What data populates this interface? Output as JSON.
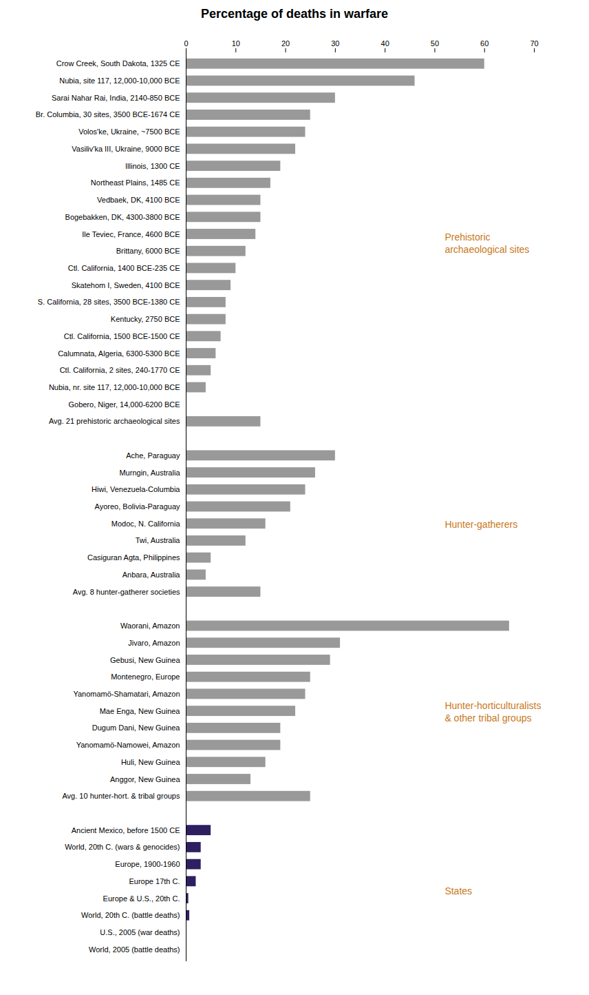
{
  "chart_data": {
    "type": "bar",
    "orientation": "horizontal",
    "title": "Percentage of deaths in warfare",
    "categories": [
      "Crow Creek, South Dakota, 1325 CE",
      "Nubia, site 117, 12,000-10,000 BCE",
      "Sarai Nahar Rai, India, 2140-850 BCE",
      "Br. Columbia, 30 sites, 3500 BCE-1674 CE",
      "Volos'ke, Ukraine, ~7500 BCE",
      "Vasiliv'ka III, Ukraine, 9000 BCE",
      "Illinois, 1300 CE",
      "Northeast Plains, 1485 CE",
      "Vedbaek, DK, 4100 BCE",
      "Bogebakken, DK, 4300-3800 BCE",
      "Ile Teviec, France, 4600 BCE",
      "Brittany, 6000 BCE",
      "Ctl. California, 1400 BCE-235 CE",
      "Skatehom I, Sweden, 4100 BCE",
      "S. California, 28 sites, 3500 BCE-1380 CE",
      "Kentucky, 2750 BCE",
      "Ctl. California, 1500 BCE-1500 CE",
      "Calumnata, Algeria, 6300-5300 BCE",
      "Ctl. California, 2 sites, 240-1770 CE",
      "Nubia, nr. site 117, 12,000-10,000 BCE",
      "Gobero, Niger, 14,000-6200 BCE",
      "Avg. 21 prehistoric archaeological sites",
      null,
      "Ache, Paraguay",
      "Murngin, Australia",
      "Hiwi, Venezuela-Columbia",
      "Ayoreo, Bolivia-Paraguay",
      "Modoc, N. California",
      "Twi, Australia",
      "Casiguran Agta, Philippines",
      "Anbara, Australia",
      "Avg. 8 hunter-gatherer societies",
      null,
      "Waorani, Amazon",
      "Jivaro, Amazon",
      "Gebusi, New Guinea",
      "Montenegro, Europe",
      "Yanomamö-Shamatari, Amazon",
      "Mae Enga, New Guinea",
      "Dugum Dani, New Guinea",
      "Yanomamö-Namowei, Amazon",
      "Huli, New Guinea",
      "Anggor, New Guinea",
      "Avg. 10 hunter-hort. & tribal groups",
      null,
      "Ancient Mexico, before 1500 CE",
      "World, 20th C. (wars & genocides)",
      "Europe, 1900-1960",
      "Europe 17th C.",
      "Europe & U.S., 20th C.",
      "World, 20th C. (battle deaths)",
      "U.S., 2005 (war deaths)",
      "World, 2005 (battle deaths)"
    ],
    "values": [
      60,
      46,
      30,
      25,
      24,
      22,
      19,
      17,
      15,
      15,
      14,
      12,
      10,
      9,
      8,
      8,
      7,
      6,
      5,
      4,
      0,
      15,
      null,
      30,
      26,
      24,
      21,
      16,
      12,
      5,
      4,
      15,
      null,
      65,
      31,
      29,
      25,
      24,
      22,
      19,
      19,
      16,
      13,
      25,
      null,
      5,
      3,
      3,
      2,
      0.5,
      0.7,
      0.1,
      0.05
    ],
    "colors": [
      "#999999",
      "#999999",
      "#999999",
      "#999999",
      "#999999",
      "#999999",
      "#999999",
      "#999999",
      "#999999",
      "#999999",
      "#999999",
      "#999999",
      "#999999",
      "#999999",
      "#999999",
      "#999999",
      "#999999",
      "#999999",
      "#999999",
      "#999999",
      "#999999",
      "#999999",
      null,
      "#999999",
      "#999999",
      "#999999",
      "#999999",
      "#999999",
      "#999999",
      "#999999",
      "#999999",
      "#999999",
      null,
      "#999999",
      "#999999",
      "#999999",
      "#999999",
      "#999999",
      "#999999",
      "#999999",
      "#999999",
      "#999999",
      "#999999",
      "#999999",
      null,
      "#2e2060",
      "#2e2060",
      "#2e2060",
      "#2e2060",
      "#2e2060",
      "#2e2060",
      "#2e2060",
      "#2e2060"
    ],
    "xlim": [
      0,
      70
    ],
    "xticks": [
      0,
      10,
      20,
      30,
      40,
      50,
      60,
      70
    ],
    "grid": false,
    "annotations": [
      {
        "text": "Prehistoric\narchaeological sites",
        "x": 52,
        "color": "#c87820"
      },
      {
        "text": "Hunter-gatherers",
        "x": 52,
        "color": "#c87820"
      },
      {
        "text": "Hunter-horticulturalists\n& other tribal groups",
        "x": 52,
        "color": "#c87820"
      },
      {
        "text": "States",
        "x": 52,
        "color": "#c87820"
      }
    ]
  }
}
